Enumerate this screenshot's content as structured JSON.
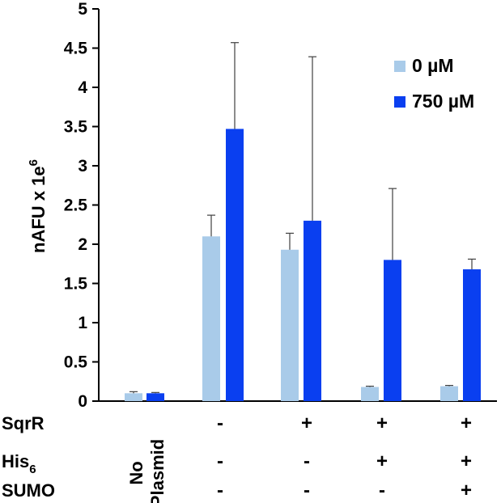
{
  "chart_data": {
    "type": "bar",
    "ylabel_main": "nAFU x 1e",
    "ylabel_sup": "6",
    "ylim": [
      0,
      5
    ],
    "yticks": [
      "0",
      "0.5",
      "1",
      "1.5",
      "2",
      "2.5",
      "3",
      "3.5",
      "4",
      "4.5",
      "5"
    ],
    "grid": false,
    "legend_position": "top-right",
    "categories": [
      "No Plasmid",
      "",
      "",
      "",
      ""
    ],
    "category_first_line": "No",
    "category_second_line": "Plasmid",
    "series": [
      {
        "name": "0 µM",
        "color": "#a9cbe9",
        "values": [
          0.1,
          2.1,
          1.93,
          0.18,
          0.19
        ],
        "errors": [
          0.02,
          0.27,
          0.21,
          0.01,
          0.01
        ]
      },
      {
        "name": "750 µM",
        "color": "#0a3ff0",
        "values": [
          0.1,
          3.47,
          2.3,
          1.8,
          1.68
        ],
        "errors": [
          0.01,
          1.1,
          2.09,
          0.91,
          0.13
        ]
      }
    ],
    "condition_rows": [
      {
        "label": "SqrR",
        "sub": "",
        "values": [
          "",
          "-",
          "+",
          "+",
          "+"
        ]
      },
      {
        "label": "His",
        "sub": "6",
        "values": [
          "",
          "-",
          "-",
          "+",
          "+"
        ]
      },
      {
        "label": "SUMO",
        "sub": "",
        "values": [
          "",
          "-",
          "-",
          "-",
          "+"
        ]
      }
    ]
  }
}
